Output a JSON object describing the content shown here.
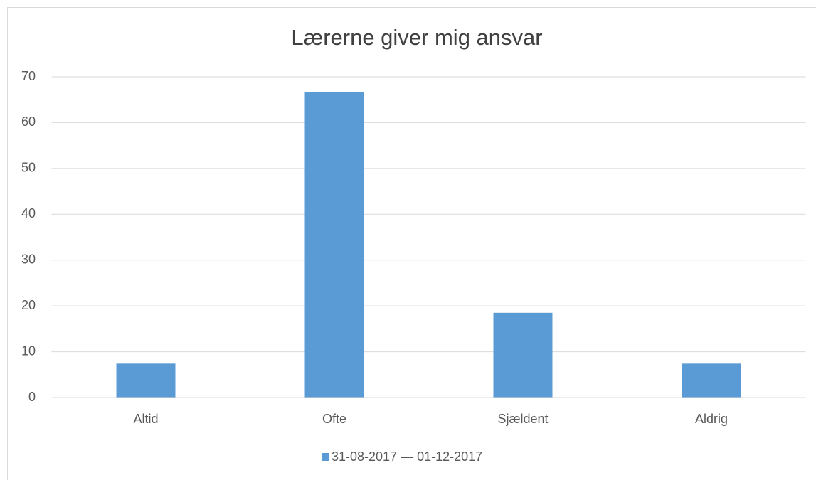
{
  "chart_data": {
    "type": "bar",
    "title": "Lærerne giver mig ansvar",
    "categories": [
      "Altid",
      "Ofte",
      "Sjældent",
      "Aldrig"
    ],
    "series": [
      {
        "name": "31-08-2017 — 01-12-2017",
        "color": "#5b9bd5",
        "values": [
          7.4,
          66.7,
          18.5,
          7.4
        ]
      }
    ],
    "ylim": [
      0,
      70
    ],
    "yticks": [
      0,
      10,
      20,
      30,
      40,
      50,
      60,
      70
    ],
    "grid": true,
    "legend": "bottom"
  }
}
